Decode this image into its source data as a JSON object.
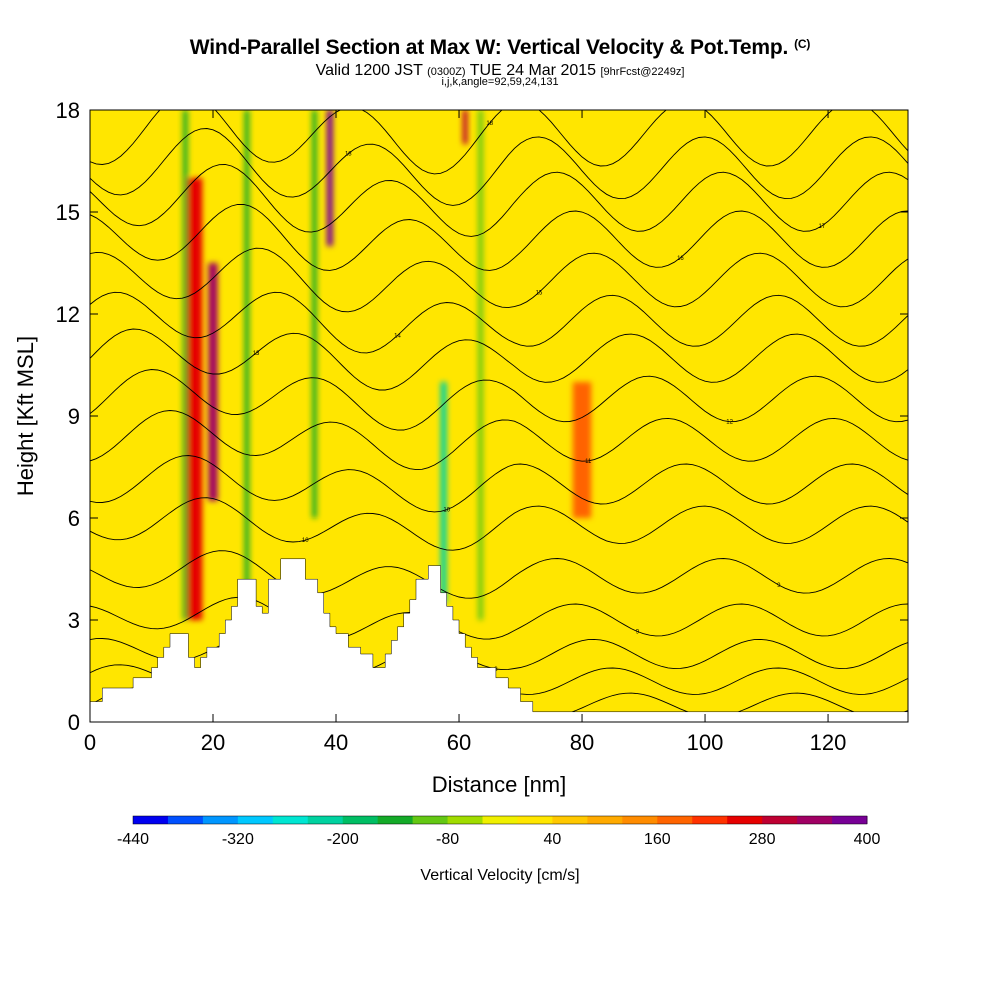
{
  "header": {
    "title": "Wind-Parallel Section at Max W: Vertical Velocity & Pot.Temp.",
    "copyright": "(C)",
    "valid_prefix": "Valid 1200 JST",
    "valid_utc": "(0300Z)",
    "valid_date": "TUE 24 Mar 2015",
    "forecast": "[9hrFcst@2249z]",
    "indices": "i,j,k,angle=92,59,24,131"
  },
  "chart_data": {
    "type": "heatmap",
    "title": "Wind-Parallel Section at Max W: Vertical Velocity & Pot.Temp.",
    "xlabel": "Distance [nm]",
    "ylabel": "Height [Kft MSL]",
    "xlim": [
      0,
      133
    ],
    "ylim": [
      0,
      18
    ],
    "x_ticks": [
      "0",
      "20",
      "40",
      "60",
      "80",
      "100",
      "120"
    ],
    "y_ticks": [
      "0",
      "3",
      "6",
      "9",
      "12",
      "15",
      "18"
    ],
    "grid": false,
    "colorbar": {
      "title": "Vertical Velocity [cm/s]",
      "placement": "bottom",
      "tick_labels": [
        "-440",
        "-320",
        "-200",
        "-80",
        "40",
        "160",
        "280",
        "400"
      ],
      "colors": [
        "#0000f0",
        "#0050ff",
        "#0096ff",
        "#00c8ff",
        "#00e6d2",
        "#00d2a0",
        "#00be64",
        "#14aa28",
        "#64c814",
        "#a0dc00",
        "#f0f000",
        "#ffe600",
        "#ffc800",
        "#ffaa00",
        "#ff8c00",
        "#ff6400",
        "#ff3200",
        "#e60000",
        "#be0032",
        "#a00064",
        "#780096"
      ]
    },
    "terrain_kft": [
      [
        0,
        0.6
      ],
      [
        2,
        0.6
      ],
      [
        2,
        1.0
      ],
      [
        7,
        1.0
      ],
      [
        7,
        1.3
      ],
      [
        10,
        1.3
      ],
      [
        10,
        1.6
      ],
      [
        11,
        1.6
      ],
      [
        11,
        1.9
      ],
      [
        12,
        1.9
      ],
      [
        12,
        2.2
      ],
      [
        13,
        2.2
      ],
      [
        13,
        2.6
      ],
      [
        16,
        2.6
      ],
      [
        16,
        1.9
      ],
      [
        17,
        1.9
      ],
      [
        17,
        1.6
      ],
      [
        18,
        1.6
      ],
      [
        18,
        1.9
      ],
      [
        19,
        1.9
      ],
      [
        19,
        2.2
      ],
      [
        21,
        2.2
      ],
      [
        21,
        2.6
      ],
      [
        22,
        2.6
      ],
      [
        22,
        3.0
      ],
      [
        23,
        3.0
      ],
      [
        23,
        3.4
      ],
      [
        24,
        3.4
      ],
      [
        24,
        4.2
      ],
      [
        27,
        4.2
      ],
      [
        27,
        3.4
      ],
      [
        28,
        3.4
      ],
      [
        28,
        3.2
      ],
      [
        29,
        3.2
      ],
      [
        29,
        4.2
      ],
      [
        31,
        4.2
      ],
      [
        31,
        4.8
      ],
      [
        35,
        4.8
      ],
      [
        35,
        4.2
      ],
      [
        37,
        4.2
      ],
      [
        37,
        3.8
      ],
      [
        38,
        3.8
      ],
      [
        38,
        3.2
      ],
      [
        39,
        3.2
      ],
      [
        39,
        2.8
      ],
      [
        40,
        2.8
      ],
      [
        40,
        2.6
      ],
      [
        42,
        2.6
      ],
      [
        42,
        2.2
      ],
      [
        44,
        2.2
      ],
      [
        44,
        2.0
      ],
      [
        46,
        2.0
      ],
      [
        46,
        1.6
      ],
      [
        48,
        1.6
      ],
      [
        48,
        2.0
      ],
      [
        49,
        2.0
      ],
      [
        49,
        2.4
      ],
      [
        50,
        2.4
      ],
      [
        50,
        2.8
      ],
      [
        51,
        2.8
      ],
      [
        51,
        3.2
      ],
      [
        52,
        3.2
      ],
      [
        52,
        3.6
      ],
      [
        53,
        3.6
      ],
      [
        53,
        4.2
      ],
      [
        55,
        4.2
      ],
      [
        55,
        4.6
      ],
      [
        57,
        4.6
      ],
      [
        57,
        3.8
      ],
      [
        58,
        3.8
      ],
      [
        58,
        3.4
      ],
      [
        59,
        3.4
      ],
      [
        59,
        3.0
      ],
      [
        60,
        3.0
      ],
      [
        60,
        2.6
      ],
      [
        61,
        2.6
      ],
      [
        61,
        2.2
      ],
      [
        62,
        2.2
      ],
      [
        62,
        1.9
      ],
      [
        63,
        1.9
      ],
      [
        63,
        1.6
      ],
      [
        66,
        1.6
      ],
      [
        66,
        1.3
      ],
      [
        68,
        1.3
      ],
      [
        68,
        1.0
      ],
      [
        70,
        1.0
      ],
      [
        70,
        0.6
      ],
      [
        72,
        0.6
      ],
      [
        72,
        0.3
      ],
      [
        133,
        0.3
      ]
    ],
    "vertical_velocity_features": [
      {
        "x": 17,
        "y": [
          3.0,
          16.0
        ],
        "width": 2.5,
        "w_cms": 220
      },
      {
        "x": 20,
        "y": [
          6.5,
          13.5
        ],
        "width": 1.5,
        "w_cms": 300
      },
      {
        "x": 39,
        "y": [
          14.0,
          18.0
        ],
        "width": 1.0,
        "w_cms": 340
      },
      {
        "x": 61,
        "y": [
          17.0,
          18.0
        ],
        "width": 0.8,
        "w_cms": 260
      },
      {
        "x": 80,
        "y": [
          6.0,
          10.0
        ],
        "width": 3.0,
        "w_cms": 140
      },
      {
        "x": 15.5,
        "y": [
          3.0,
          18.0
        ],
        "width": 0.8,
        "w_cms": -180
      },
      {
        "x": 25.5,
        "y": [
          4.0,
          18.0
        ],
        "width": 0.8,
        "w_cms": -160
      },
      {
        "x": 36.5,
        "y": [
          6.0,
          18.0
        ],
        "width": 0.8,
        "w_cms": -180
      },
      {
        "x": 57.5,
        "y": [
          3.5,
          10.0
        ],
        "width": 1.0,
        "w_cms": -260
      },
      {
        "x": 63.5,
        "y": [
          3.0,
          18.0
        ],
        "width": 0.8,
        "w_cms": -140
      }
    ],
    "theta_contour_base_kft": [
      0.5,
      1.2,
      2.0,
      3.0,
      4.3,
      5.8,
      7.0,
      8.3,
      9.5,
      10.7,
      11.8,
      13.0,
      14.2,
      15.3,
      16.3,
      17.3
    ],
    "theta_contour_labels": [
      "8",
      "8",
      "8",
      "9",
      "9",
      "10",
      "10",
      "11",
      "12",
      "13",
      "14",
      "15",
      "16",
      "17",
      "18",
      "18"
    ]
  }
}
